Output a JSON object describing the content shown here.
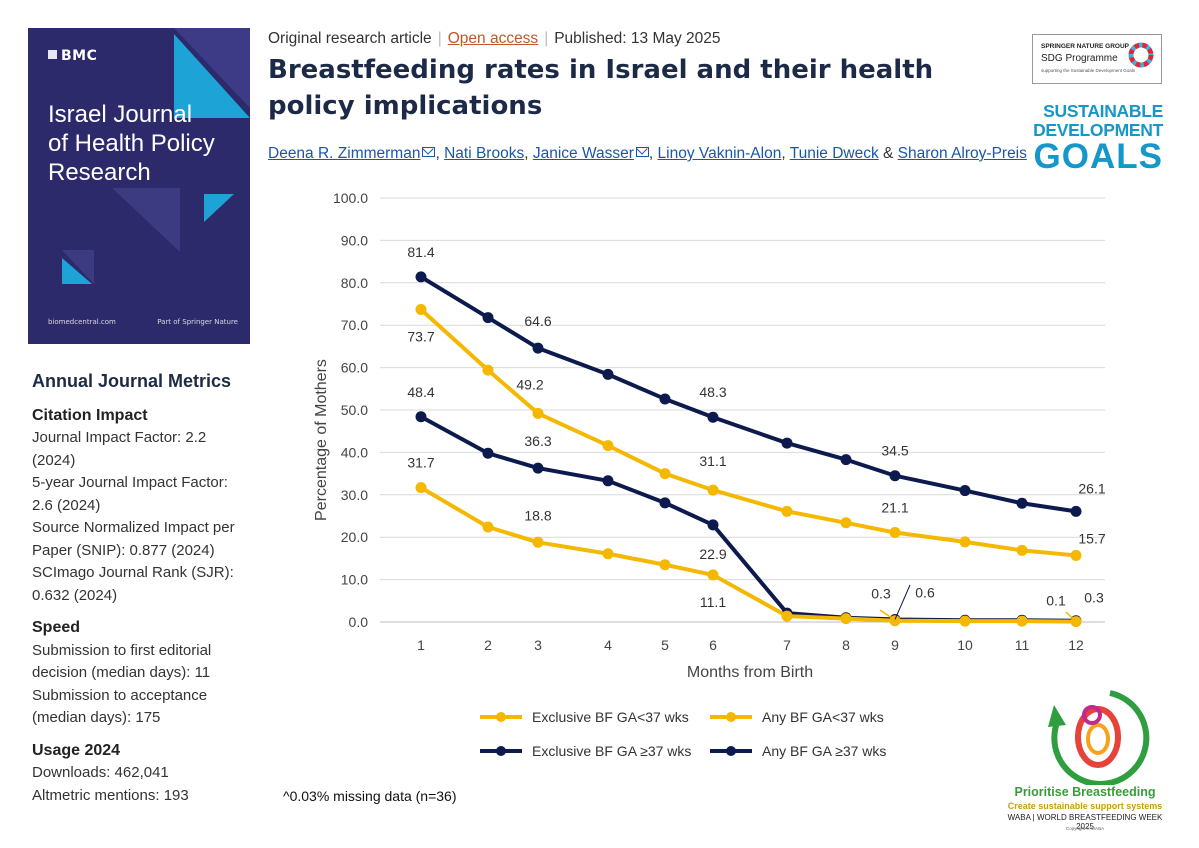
{
  "cover": {
    "brand": "BMC",
    "title_lines": [
      "Israel Journal",
      "of Health Policy",
      "Research"
    ],
    "footer_left": "biomedcentral.com",
    "footer_right": "Part of Springer Nature",
    "bg_color": "#2c2a6b",
    "accent_color": "#1ea3d6"
  },
  "metrics": {
    "heading": "Annual Journal Metrics",
    "groups": [
      {
        "title": "Citation Impact",
        "lines": [
          "Journal Impact Factor: 2.2",
          "(2024)",
          "5-year Journal Impact Factor:",
          "2.6 (2024)",
          "Source Normalized Impact per",
          "Paper (SNIP): 0.877 (2024)",
          "SCImago Journal Rank (SJR):",
          "0.632 (2024)"
        ]
      },
      {
        "title": "Speed",
        "lines": [
          "Submission to first editorial",
          "decision (median days): 11",
          "Submission to acceptance",
          "(median days): 175"
        ]
      },
      {
        "title": "Usage 2024",
        "lines": [
          "Downloads: 462,041",
          "Altmetric mentions: 193"
        ]
      }
    ]
  },
  "article": {
    "type": "Original research article",
    "access": "Open access",
    "published": "Published: 13 May 2025",
    "title": "Breastfeeding rates in Israel and their health policy implications",
    "authors": {
      "a1": "Deena R. Zimmerman",
      "a2": "Nati Brooks",
      "a3": "Janice Wasser",
      "a4": "Linoy Vaknin-Alon",
      "a5": "Tunie Dweck",
      "a6": "Sharon Alroy-Preis",
      "sep": ", ",
      "amp": " & "
    }
  },
  "logos": {
    "sn_group": "SPRINGER NATURE GROUP",
    "sn_programme": "SDG Programme",
    "sn_tagline": "supporting the Sustainable Development Goals",
    "sdg_line1": "SUSTAINABLE",
    "sdg_line2": "DEVELOPMENT",
    "sdg_line3": "GOALS",
    "sdg_color": "#1597c9"
  },
  "waba": {
    "line1": "Prioritise Breastfeeding",
    "line2": "Create sustainable support systems",
    "line3": "WABA | WORLD BREASTFEEDING WEEK 2025",
    "line4": "Copyright © WABA"
  },
  "note": "^0.03% missing data (n=36)",
  "chart_data": {
    "type": "line",
    "xlabel": "Months from Birth",
    "ylabel": "Percentage of Mothers",
    "ylim": [
      0,
      100
    ],
    "yticks": [
      "0.0",
      "10.0",
      "20.0",
      "30.0",
      "40.0",
      "50.0",
      "60.0",
      "70.0",
      "80.0",
      "90.0",
      "100.0"
    ],
    "x": [
      1,
      2,
      3,
      4,
      5,
      6,
      7,
      8,
      9,
      10,
      11,
      12
    ],
    "grid": true,
    "legend_position": "bottom",
    "series": [
      {
        "name": "Any BF GA≥37 wks",
        "legend_label": "Any BF GA ≥37 wks",
        "color": "#0d1a4d",
        "values": [
          81.4,
          71.8,
          64.6,
          58.4,
          52.6,
          48.3,
          42.2,
          38.3,
          34.5,
          31.0,
          28.0,
          26.1
        ],
        "labels": {
          "1": "81.4",
          "3": "64.6",
          "6": "48.3",
          "9": "34.5",
          "12": "26.1"
        }
      },
      {
        "name": "Any BF GA<37 wks",
        "legend_label": "Any BF   GA<37 wks",
        "color": "#f5b800",
        "values": [
          73.7,
          59.4,
          49.2,
          41.6,
          35.0,
          31.1,
          26.1,
          23.4,
          21.1,
          18.9,
          16.9,
          15.7
        ],
        "labels": {
          "1": "73.7",
          "3": "49.2",
          "6": "31.1",
          "9": "21.1",
          "12": "15.7"
        }
      },
      {
        "name": "Exclusive BF GA≥37 wks",
        "legend_label": "Exclusive BF GA ≥37 wks",
        "color": "#0d1a4d",
        "values": [
          48.4,
          39.8,
          36.3,
          33.3,
          28.1,
          22.9,
          2.1,
          1.0,
          0.6,
          0.4,
          0.4,
          0.3
        ],
        "labels": {
          "1": "48.4",
          "3": "36.3",
          "6": "22.9",
          "9": "0.6",
          "12": "0.3"
        }
      },
      {
        "name": "Exclusive BF GA<37 wks",
        "legend_label": "Exclusive BF GA<37 wks",
        "color": "#f5b800",
        "values": [
          31.7,
          22.4,
          18.8,
          16.1,
          13.5,
          11.1,
          1.4,
          0.8,
          0.3,
          0.2,
          0.2,
          0.1
        ],
        "labels": {
          "1": "31.7",
          "3": "18.8",
          "6": "11.1",
          "9": "0.3",
          "12": "0.1"
        }
      }
    ]
  }
}
